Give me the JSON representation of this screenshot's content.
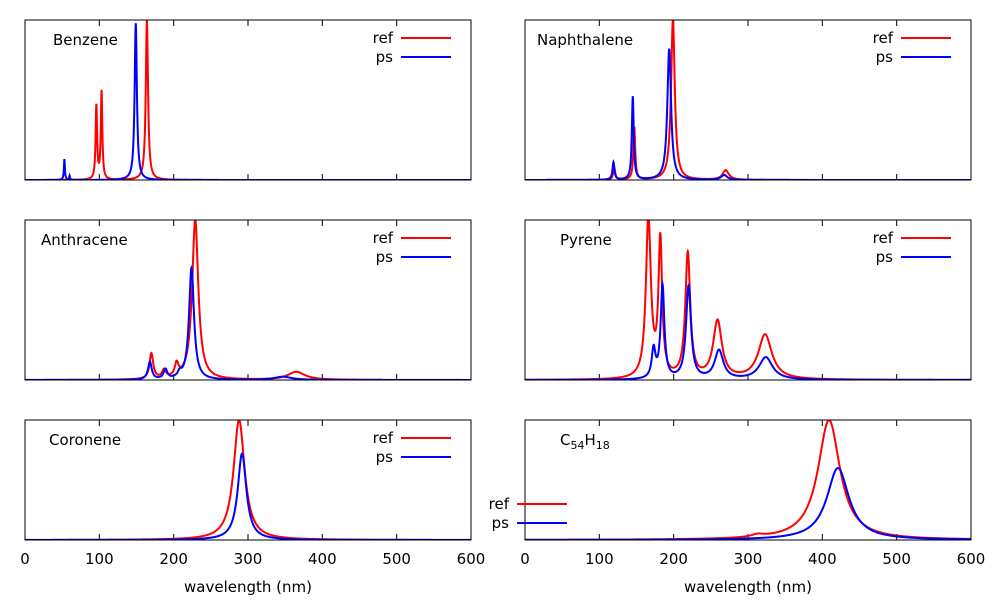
{
  "colors": {
    "ref": "#ff0000",
    "ps": "#0000ff",
    "axes": "#000000"
  },
  "chart_data": [
    {
      "type": "line",
      "title": "Benzene",
      "xlim": [
        0,
        600
      ],
      "ylim": [
        0,
        1
      ],
      "legend_placement": "top-right",
      "series": [
        {
          "name": "ref",
          "peaks": [
            {
              "x": 96,
              "y": 0.46,
              "w": 1.2
            },
            {
              "x": 103,
              "y": 0.55,
              "w": 1.2
            },
            {
              "x": 164,
              "y": 1.0,
              "w": 1.8
            }
          ]
        },
        {
          "name": "ps",
          "peaks": [
            {
              "x": 53,
              "y": 0.13,
              "w": 0.8
            },
            {
              "x": 60,
              "y": 0.025,
              "w": 0.6
            },
            {
              "x": 149,
              "y": 0.98,
              "w": 1.8
            }
          ]
        }
      ]
    },
    {
      "type": "line",
      "title": "Naphthalene",
      "xlim": [
        0,
        600
      ],
      "ylim": [
        0,
        1
      ],
      "legend_placement": "top-right",
      "series": [
        {
          "name": "ref",
          "peaks": [
            {
              "x": 120,
              "y": 0.08,
              "w": 1.5
            },
            {
              "x": 147,
              "y": 0.33,
              "w": 1.5
            },
            {
              "x": 199,
              "y": 1.0,
              "w": 3.0
            },
            {
              "x": 270,
              "y": 0.06,
              "w": 5.0
            }
          ]
        },
        {
          "name": "ps",
          "peaks": [
            {
              "x": 119,
              "y": 0.11,
              "w": 1.5
            },
            {
              "x": 145,
              "y": 0.52,
              "w": 1.5
            },
            {
              "x": 194,
              "y": 0.82,
              "w": 3.0
            },
            {
              "x": 268,
              "y": 0.03,
              "w": 5.0
            }
          ]
        }
      ]
    },
    {
      "type": "line",
      "title": "Anthracene",
      "xlim": [
        0,
        600
      ],
      "ylim": [
        0,
        1
      ],
      "legend_placement": "top-right",
      "series": [
        {
          "name": "ref",
          "peaks": [
            {
              "x": 170,
              "y": 0.16,
              "w": 3.0
            },
            {
              "x": 187,
              "y": 0.05,
              "w": 3.0
            },
            {
              "x": 204,
              "y": 0.08,
              "w": 3.0
            },
            {
              "x": 229,
              "y": 1.0,
              "w": 5.0
            },
            {
              "x": 365,
              "y": 0.05,
              "w": 14.0
            }
          ]
        },
        {
          "name": "ps",
          "peaks": [
            {
              "x": 168,
              "y": 0.11,
              "w": 3.0
            },
            {
              "x": 189,
              "y": 0.06,
              "w": 3.0
            },
            {
              "x": 208,
              "y": 0.03,
              "w": 3.0
            },
            {
              "x": 224,
              "y": 0.7,
              "w": 4.0
            },
            {
              "x": 347,
              "y": 0.02,
              "w": 14.0
            }
          ]
        }
      ]
    },
    {
      "type": "line",
      "title": "Pyrene",
      "xlim": [
        0,
        600
      ],
      "ylim": [
        0,
        1
      ],
      "legend_placement": "top-right",
      "series": [
        {
          "name": "ref",
          "peaks": [
            {
              "x": 166,
              "y": 1.0,
              "w": 4.0
            },
            {
              "x": 182,
              "y": 0.85,
              "w": 3.0
            },
            {
              "x": 219,
              "y": 0.78,
              "w": 4.0
            },
            {
              "x": 259,
              "y": 0.36,
              "w": 7.0
            },
            {
              "x": 323,
              "y": 0.28,
              "w": 11.0
            }
          ]
        },
        {
          "name": "ps",
          "peaks": [
            {
              "x": 173,
              "y": 0.18,
              "w": 3.0
            },
            {
              "x": 185,
              "y": 0.58,
              "w": 3.0
            },
            {
              "x": 220,
              "y": 0.58,
              "w": 4.0
            },
            {
              "x": 261,
              "y": 0.18,
              "w": 7.0
            },
            {
              "x": 324,
              "y": 0.14,
              "w": 11.0
            }
          ]
        }
      ]
    },
    {
      "type": "line",
      "title": "Coronene",
      "xlim": [
        0,
        600
      ],
      "ylim": [
        0,
        1
      ],
      "legend_placement": "top-right",
      "series": [
        {
          "name": "ref",
          "peaks": [
            {
              "x": 288,
              "y": 1.0,
              "w": 9.0
            }
          ]
        },
        {
          "name": "ps",
          "peaks": [
            {
              "x": 292,
              "y": 0.72,
              "w": 7.0
            }
          ]
        }
      ]
    },
    {
      "type": "line",
      "title": "C54H18",
      "title_main": "C",
      "title_sub1": "54",
      "title_mid": "H",
      "title_sub2": "18",
      "xlim": [
        0,
        600
      ],
      "ylim": [
        0,
        1
      ],
      "legend_placement": "bottom-left",
      "series": [
        {
          "name": "ref",
          "peaks": [
            {
              "x": 313,
              "y": 0.02,
              "w": 10.0
            },
            {
              "x": 409,
              "y": 1.0,
              "w": 18.0
            }
          ]
        },
        {
          "name": "ps",
          "peaks": [
            {
              "x": 421,
              "y": 0.6,
              "w": 18.0
            }
          ]
        }
      ]
    }
  ],
  "x_ticks": [
    "0",
    "100",
    "200",
    "300",
    "400",
    "500",
    "600"
  ],
  "xlabel": "wavelength (nm)"
}
